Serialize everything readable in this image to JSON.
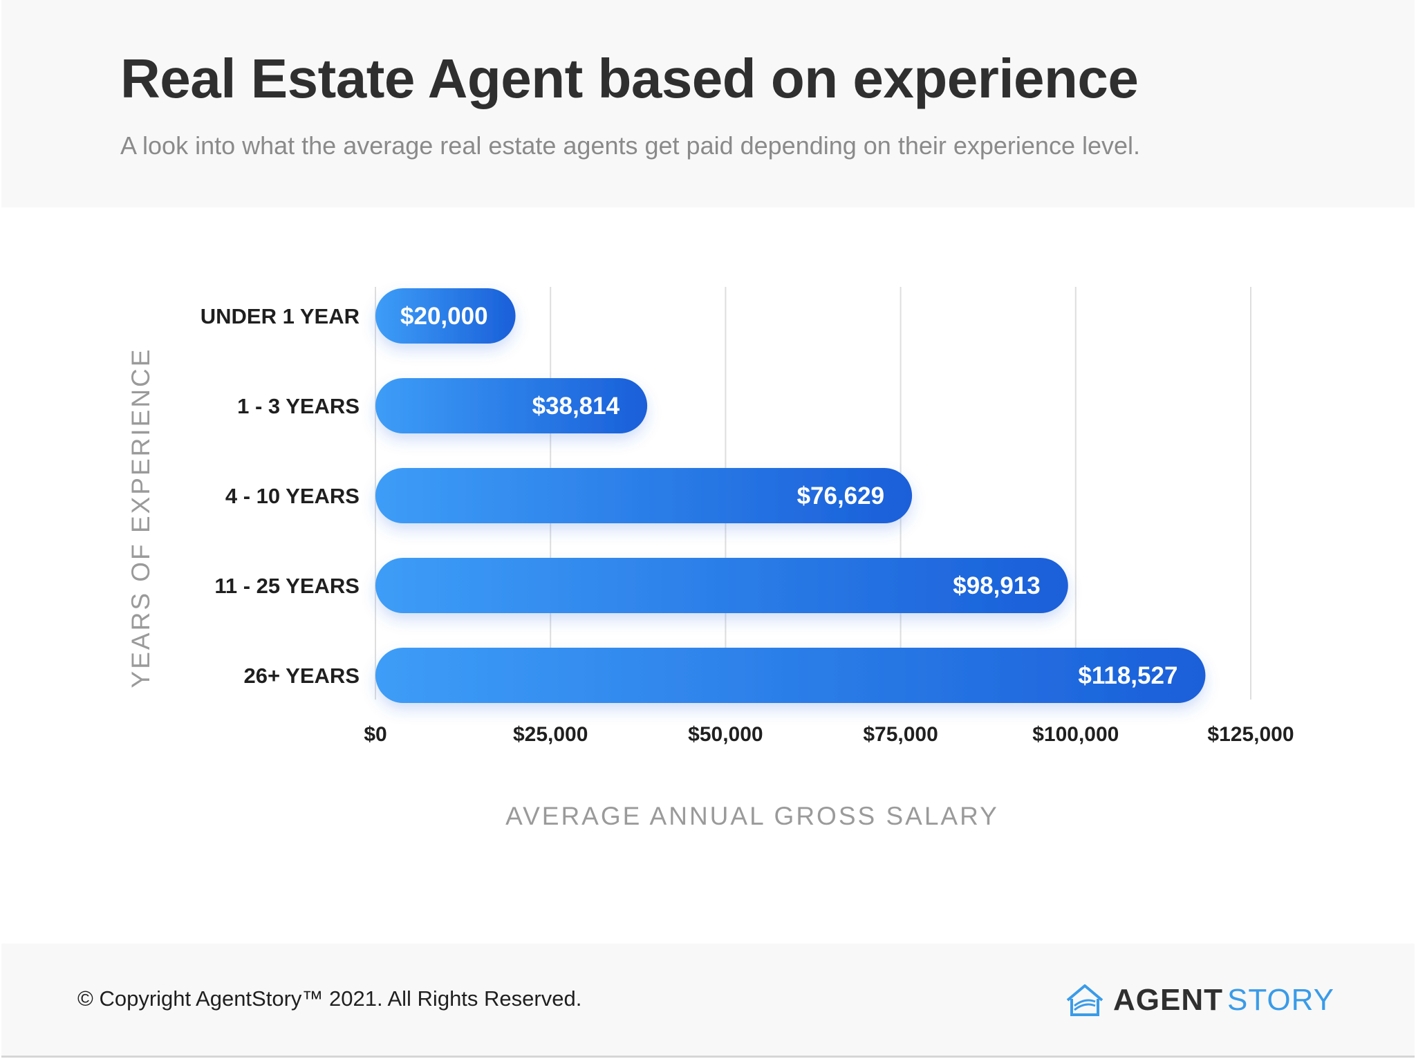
{
  "header": {
    "title": "Real Estate Agent based on experience",
    "subtitle": "A look into what the average real estate agents get paid depending on their experience level."
  },
  "chart_data": {
    "type": "bar",
    "orientation": "horizontal",
    "categories": [
      "UNDER 1 YEAR",
      "1 - 3 YEARS",
      "4 - 10 YEARS",
      "11 - 25 YEARS",
      "26+ YEARS"
    ],
    "values": [
      20000,
      38814,
      76629,
      98913,
      118527
    ],
    "value_labels": [
      "$20,000",
      "$38,814",
      "$76,629",
      "$98,913",
      "$118,527"
    ],
    "xlabel": "AVERAGE ANNUAL GROSS SALARY",
    "ylabel": "YEARS OF EXPERIENCE",
    "xlim": [
      0,
      125000
    ],
    "x_ticks": [
      0,
      25000,
      50000,
      75000,
      100000,
      125000
    ],
    "x_tick_labels": [
      "$0",
      "$25,000",
      "$50,000",
      "$75,000",
      "$100,000",
      "$125,000"
    ],
    "grid": "vertical",
    "colors": {
      "bar_start": "#3d9df7",
      "bar_end": "#1a5fd9"
    }
  },
  "footer": {
    "copyright": "© Copyright AgentStory™ 2021. All Rights Reserved.",
    "brand_bold": "AGENT",
    "brand_light": "STORY",
    "brand_icon": "house-logo-icon"
  }
}
